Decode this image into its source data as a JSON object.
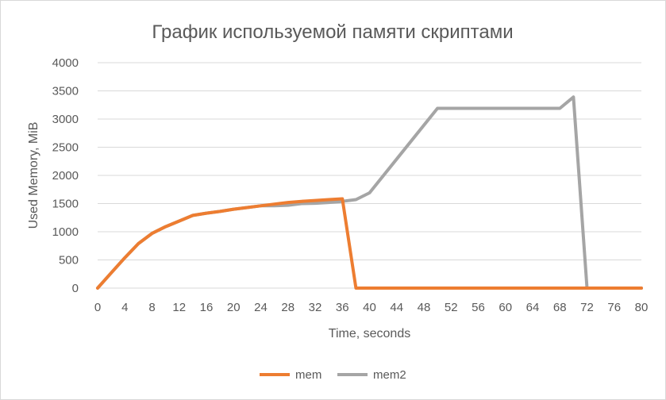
{
  "chart_data": {
    "type": "line",
    "title": "График используемой памяти скриптами",
    "xlabel": "Time, seconds",
    "ylabel": "Used Memory, MiB",
    "xlim": [
      0,
      80
    ],
    "ylim": [
      0,
      4000
    ],
    "x_ticks": [
      0,
      4,
      8,
      12,
      16,
      20,
      24,
      28,
      32,
      36,
      40,
      44,
      48,
      52,
      56,
      60,
      64,
      68,
      72,
      76,
      80
    ],
    "y_ticks": [
      0,
      500,
      1000,
      1500,
      2000,
      2500,
      3000,
      3500,
      4000
    ],
    "grid": "horizontal",
    "legend_position": "bottom",
    "series": [
      {
        "name": "mem",
        "color": "#ED7D31",
        "x": [
          0,
          2,
          4,
          6,
          8,
          10,
          12,
          14,
          16,
          18,
          20,
          22,
          24,
          26,
          28,
          30,
          32,
          34,
          36,
          38,
          40,
          50,
          60,
          70,
          72,
          74,
          76,
          78,
          80
        ],
        "y": [
          0,
          270,
          540,
          790,
          970,
          1090,
          1190,
          1290,
          1330,
          1360,
          1400,
          1430,
          1460,
          1490,
          1520,
          1540,
          1555,
          1570,
          1585,
          0,
          0,
          0,
          0,
          0,
          0,
          0,
          0,
          0,
          0
        ]
      },
      {
        "name": "mem2",
        "color": "#A5A5A5",
        "x": [
          0,
          2,
          4,
          6,
          8,
          10,
          12,
          14,
          16,
          18,
          20,
          22,
          24,
          26,
          28,
          30,
          32,
          34,
          36,
          38,
          40,
          50,
          52,
          60,
          68,
          70,
          72,
          74,
          76,
          78,
          80
        ],
        "y": [
          0,
          270,
          540,
          790,
          970,
          1090,
          1190,
          1290,
          1330,
          1360,
          1400,
          1430,
          1460,
          1460,
          1470,
          1500,
          1505,
          1520,
          1540,
          1570,
          1690,
          3190,
          3190,
          3190,
          3190,
          3390,
          0,
          0,
          0,
          0,
          0
        ]
      }
    ]
  }
}
